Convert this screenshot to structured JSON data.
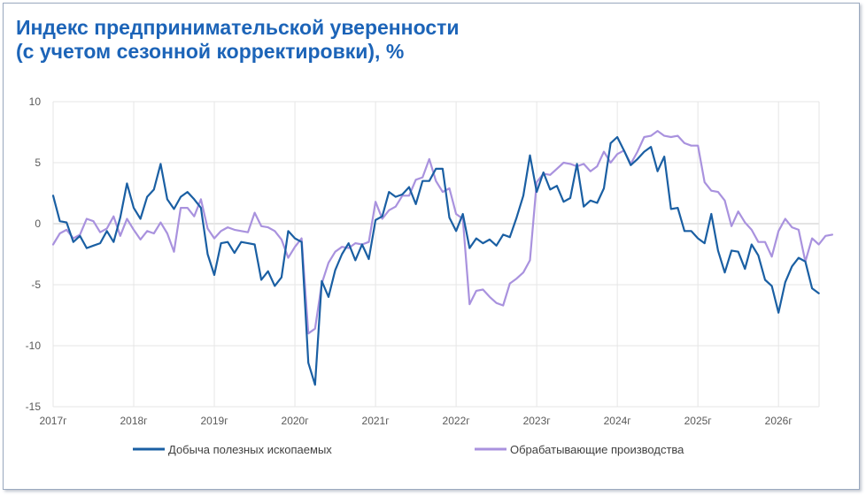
{
  "chart_data": {
    "type": "line",
    "title": "Индекс предпринимательской уверенности",
    "subtitle": "(с учетом сезонной корректировки), %",
    "xlabel": "",
    "ylabel": "",
    "ylim": [
      -15,
      10
    ],
    "yticks": [
      "10",
      "5",
      "0",
      "-5",
      "-10",
      "-15"
    ],
    "xticks": [
      "2017г",
      "2018г",
      "2019г",
      "2020г",
      "2021г",
      "2022г",
      "2023г",
      "2024г",
      "2025г",
      "2026г"
    ],
    "grid": true,
    "legend_position": "bottom",
    "series": [
      {
        "name": "Добыча полезных ископаемых",
        "color": "#1a5fa3",
        "start": "2017-01",
        "values": [
          2.3,
          0.2,
          0.1,
          -1.5,
          -1.0,
          -2.0,
          -1.8,
          -1.6,
          -0.6,
          -1.5,
          0.5,
          3.3,
          1.3,
          0.4,
          2.2,
          2.8,
          4.9,
          2.0,
          1.2,
          2.2,
          2.6,
          2.0,
          1.3,
          -2.5,
          -4.2,
          -1.6,
          -1.5,
          -2.4,
          -1.5,
          -1.6,
          -1.7,
          -4.6,
          -3.9,
          -5.1,
          -4.4,
          -0.6,
          -1.2,
          -1.5,
          -11.4,
          -13.2,
          -4.7,
          -6.0,
          -3.8,
          -2.5,
          -1.6,
          -3.0,
          -1.7,
          -2.9,
          0.3,
          0.6,
          2.6,
          2.2,
          2.4,
          3.0,
          1.6,
          3.5,
          3.5,
          4.5,
          4.5,
          0.5,
          -0.6,
          0.8,
          -2.0,
          -1.2,
          -1.6,
          -1.3,
          -1.8,
          -0.9,
          -1.1,
          0.5,
          2.3,
          5.6,
          2.6,
          4.2,
          2.8,
          3.1,
          1.8,
          2.1,
          4.9,
          1.4,
          1.9,
          1.7,
          2.9,
          6.6,
          7.1,
          6.0,
          4.8,
          5.3,
          5.9,
          6.3,
          4.3,
          5.5,
          1.2,
          1.3,
          -0.6,
          -0.6,
          -1.2,
          -1.6,
          0.8,
          -2.2,
          -4.0,
          -2.2,
          -2.3,
          -3.7,
          -1.7,
          -2.6,
          -4.6,
          -5.1,
          -7.3,
          -4.8,
          -3.5,
          -2.8,
          -3.1,
          -5.3,
          -5.7
        ]
      },
      {
        "name": "Обрабатывающие производства",
        "color": "#a992de",
        "start": "2017-01",
        "values": [
          -1.7,
          -0.8,
          -0.5,
          -1.2,
          -0.9,
          0.4,
          0.2,
          -0.7,
          -0.4,
          0.6,
          -1.0,
          0.4,
          -0.5,
          -1.3,
          -0.6,
          -0.8,
          0.1,
          -0.8,
          -2.3,
          1.3,
          1.3,
          0.6,
          2.0,
          -0.4,
          -1.2,
          -0.6,
          -0.3,
          -0.5,
          -0.6,
          -0.7,
          0.9,
          -0.2,
          -0.3,
          -0.6,
          -1.3,
          -2.8,
          -1.9,
          -1.2,
          -9.0,
          -8.6,
          -4.9,
          -3.2,
          -2.3,
          -1.9,
          -2.0,
          -1.6,
          -1.7,
          -1.5,
          1.8,
          0.4,
          1.1,
          1.4,
          2.3,
          2.3,
          3.6,
          3.8,
          5.3,
          3.5,
          2.6,
          2.9,
          0.8,
          0.4,
          -6.6,
          -5.5,
          -5.4,
          -6.0,
          -6.5,
          -6.7,
          -4.9,
          -4.5,
          -4.0,
          -3.0,
          3.4,
          4.1,
          4.0,
          4.5,
          5.0,
          4.9,
          4.7,
          4.9,
          4.3,
          4.7,
          5.9,
          5.0,
          5.7,
          6.0,
          4.9,
          5.9,
          7.1,
          7.2,
          7.6,
          7.2,
          7.1,
          7.2,
          6.6,
          6.4,
          6.4,
          3.4,
          2.7,
          2.6,
          1.9,
          -0.2,
          1.0,
          0.1,
          -0.5,
          -1.5,
          -1.5,
          -2.7,
          -0.6,
          0.4,
          -0.3,
          -0.5,
          -3.1,
          -1.2,
          -1.7,
          -1.0,
          -0.9
        ]
      }
    ]
  }
}
